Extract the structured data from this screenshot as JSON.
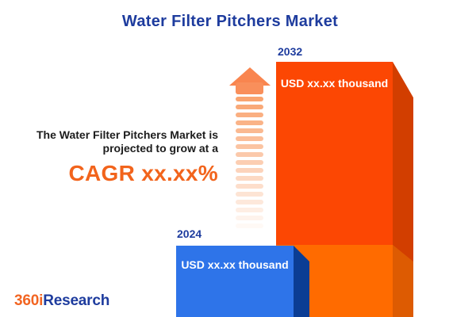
{
  "title": "Water Filter Pitchers Market",
  "headline": {
    "line1": "The Water Filter Pitchers Market is",
    "line2": "projected to grow at a",
    "cagr": "CAGR xx.xx%"
  },
  "chart_data": {
    "type": "bar",
    "title": "Water Filter Pitchers Market",
    "categories": [
      "2024",
      "2032"
    ],
    "values": [
      null,
      null
    ],
    "value_labels": [
      "USD xx.xx thousand",
      "USD xx.xx thousand"
    ],
    "bar_colors": [
      "#2E74E9",
      "#FC4703"
    ],
    "legend": "none",
    "grid": false,
    "annotation": "upward growth arrow between bars"
  },
  "logo": {
    "prefix": "360i",
    "suffix": "Research"
  },
  "colors": {
    "title_blue": "#1E3C9E",
    "headline_text": "#1C1C1C",
    "cagr_orange": "#F2641C",
    "bar_2032_face": "#FC4703",
    "bar_2032_face_lower": "#FF6B00",
    "bar_2032_side": "#D23E00",
    "bar_2032_side_lower": "#DD5B02",
    "bar_2024_face": "#2E74E9",
    "bar_2024_side": "#0B3D94",
    "arrow_orange": "#F9854F",
    "logo_orange": "#F26522",
    "background": "#FFFFFF"
  }
}
